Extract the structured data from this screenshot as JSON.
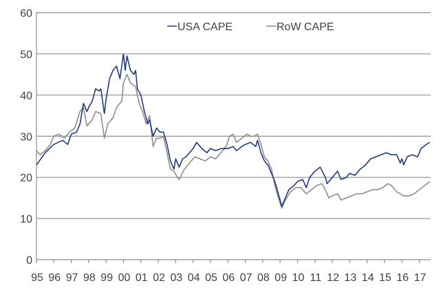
{
  "chart_data": {
    "type": "line",
    "title": "",
    "xlabel": "",
    "ylabel": "",
    "xlim": [
      1995,
      2017.65
    ],
    "ylim": [
      0,
      60
    ],
    "yticks": [
      0,
      10,
      20,
      30,
      40,
      50,
      60
    ],
    "xtick_labels": [
      "95",
      "96",
      "97",
      "98",
      "99",
      "00",
      "01",
      "02",
      "03",
      "04",
      "05",
      "06",
      "07",
      "08",
      "09",
      "10",
      "11",
      "12",
      "13",
      "14",
      "15",
      "16",
      "17"
    ],
    "grid": true,
    "legend_position": "top-center",
    "series": [
      {
        "name": "USA CAPE",
        "color": "#1f3b7d",
        "x": [
          1995.0,
          1995.5,
          1996.0,
          1996.5,
          1996.8,
          1997.0,
          1997.3,
          1997.5,
          1997.7,
          1997.9,
          1998.0,
          1998.2,
          1998.4,
          1998.6,
          1998.7,
          1998.9,
          1999.0,
          1999.2,
          1999.4,
          1999.6,
          1999.8,
          2000.0,
          2000.1,
          2000.2,
          2000.4,
          2000.6,
          2000.7,
          2000.8,
          2001.0,
          2001.2,
          2001.4,
          2001.5,
          2001.7,
          2001.9,
          2002.1,
          2002.3,
          2002.5,
          2002.7,
          2002.9,
          2003.0,
          2003.2,
          2003.4,
          2003.6,
          2003.8,
          2004.0,
          2004.2,
          2004.5,
          2004.8,
          2005.0,
          2005.3,
          2005.6,
          2006.0,
          2006.3,
          2006.5,
          2006.8,
          2007.0,
          2007.3,
          2007.6,
          2007.7,
          2007.9,
          2008.1,
          2008.3,
          2008.5,
          2008.7,
          2008.9,
          2009.1,
          2009.3,
          2009.5,
          2009.8,
          2010.0,
          2010.3,
          2010.5,
          2010.7,
          2011.0,
          2011.3,
          2011.6,
          2011.7,
          2012.0,
          2012.3,
          2012.5,
          2012.8,
          2013.0,
          2013.3,
          2013.6,
          2013.9,
          2014.2,
          2014.5,
          2014.8,
          2015.1,
          2015.4,
          2015.7,
          2015.9,
          2016.0,
          2016.1,
          2016.3,
          2016.6,
          2016.9,
          2017.1,
          2017.4,
          2017.6
        ],
        "y": [
          23,
          26,
          28,
          29,
          28,
          30.5,
          31,
          33,
          38,
          36,
          37,
          38.5,
          41.5,
          41,
          41.5,
          35.5,
          39,
          44,
          46,
          47,
          44,
          50,
          46,
          49.5,
          46,
          45,
          46,
          41.5,
          40,
          36,
          33,
          34,
          30,
          32,
          31,
          31,
          28,
          24,
          22,
          24.5,
          22.5,
          24.5,
          25,
          26,
          27,
          28.5,
          27,
          26,
          27,
          26.5,
          27,
          27,
          27.5,
          26.5,
          27.5,
          28,
          28.5,
          27.5,
          29,
          26,
          24,
          23,
          21,
          19,
          16,
          13,
          15,
          17,
          18,
          19,
          19.5,
          17.5,
          20,
          21.5,
          22.5,
          20,
          18.5,
          20,
          21.5,
          19.5,
          20,
          21,
          20.5,
          22,
          23,
          24.5,
          25,
          25.5,
          26,
          25.5,
          25.5,
          23.5,
          24.5,
          23,
          25,
          25.5,
          25,
          27,
          28,
          28.5
        ]
      },
      {
        "name": "RoW CAPE",
        "color": "#8c8c8c",
        "x": [
          1995.0,
          1995.2,
          1995.5,
          1995.8,
          1996.0,
          1996.3,
          1996.6,
          1996.9,
          1997.2,
          1997.5,
          1997.7,
          1997.9,
          1998.2,
          1998.4,
          1998.7,
          1998.9,
          1999.1,
          1999.4,
          1999.6,
          1999.9,
          2000.0,
          2000.2,
          2000.4,
          2000.7,
          2000.9,
          2001.1,
          2001.3,
          2001.5,
          2001.7,
          2001.9,
          2002.1,
          2002.3,
          2002.5,
          2002.7,
          2002.9,
          2003.1,
          2003.2,
          2003.5,
          2003.8,
          2004.1,
          2004.4,
          2004.7,
          2005.0,
          2005.3,
          2005.6,
          2005.9,
          2006.1,
          2006.3,
          2006.5,
          2006.8,
          2007.1,
          2007.3,
          2007.5,
          2007.7,
          2007.9,
          2008.1,
          2008.3,
          2008.5,
          2008.7,
          2008.9,
          2009.1,
          2009.3,
          2009.6,
          2009.9,
          2010.2,
          2010.5,
          2010.8,
          2011.1,
          2011.4,
          2011.6,
          2011.8,
          2012.0,
          2012.3,
          2012.5,
          2012.8,
          2013.1,
          2013.4,
          2013.7,
          2014.0,
          2014.3,
          2014.6,
          2014.9,
          2015.2,
          2015.4,
          2015.7,
          2015.9,
          2016.1,
          2016.4,
          2016.7,
          2017.0,
          2017.3,
          2017.6
        ],
        "y": [
          26.5,
          25.5,
          26.5,
          28,
          30,
          30.5,
          29.5,
          31,
          32,
          36,
          37,
          32.5,
          34,
          36,
          35.5,
          29.5,
          33,
          34.5,
          37,
          38.5,
          43,
          45,
          43,
          42,
          38,
          36,
          33,
          35,
          27.5,
          29.5,
          29.5,
          30,
          26,
          22,
          21.5,
          20,
          19.5,
          22,
          23.5,
          25,
          24.5,
          24,
          25,
          24.5,
          26,
          27.5,
          30,
          30.5,
          28.5,
          29.5,
          30.5,
          30,
          30,
          30.5,
          28,
          25,
          24,
          22,
          18,
          15,
          12.5,
          14.5,
          16.5,
          17.5,
          17.5,
          16,
          17,
          18,
          18.5,
          17,
          15,
          15.5,
          16,
          14.5,
          15,
          15.5,
          16,
          16,
          16.5,
          17,
          17,
          17.5,
          18.5,
          18,
          16.5,
          16,
          15.5,
          15.5,
          16,
          17,
          18,
          19
        ]
      }
    ]
  }
}
